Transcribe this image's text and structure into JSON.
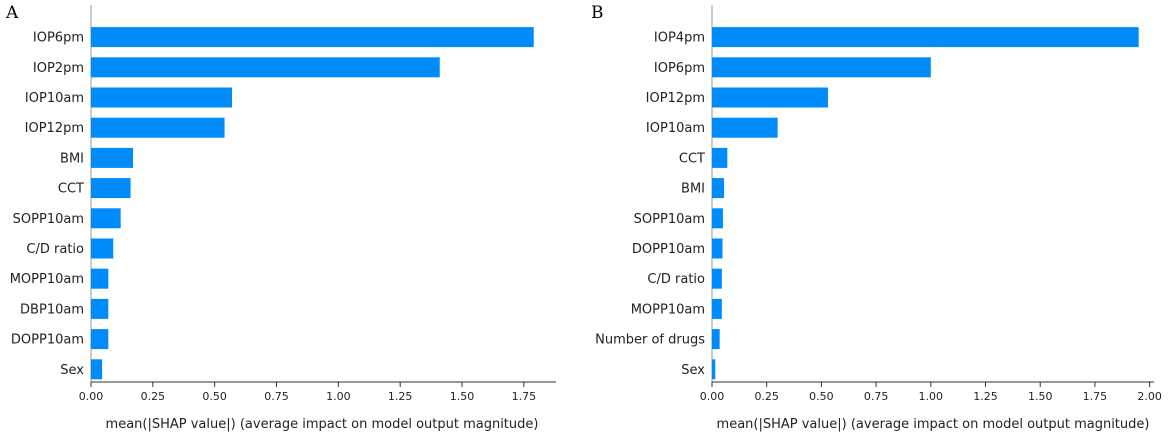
{
  "chart_data": [
    {
      "type": "bar",
      "orientation": "horizontal",
      "panel_label": "A",
      "title": "",
      "categories": [
        "IOP6pm",
        "IOP2pm",
        "IOP10am",
        "IOP12pm",
        "BMI",
        "CCT",
        "SOPP10am",
        "C/D ratio",
        "MOPP10am",
        "DBP10am",
        "DOPP10am",
        "Sex"
      ],
      "values": [
        1.79,
        1.41,
        0.57,
        0.54,
        0.17,
        0.16,
        0.12,
        0.09,
        0.07,
        0.07,
        0.07,
        0.045
      ],
      "xlabel": "mean(|SHAP value|) (average impact on model output magnitude)",
      "ylabel": "",
      "xlim": [
        0,
        1.88
      ],
      "xticks": [
        0.0,
        0.25,
        0.5,
        0.75,
        1.0,
        1.25,
        1.5,
        1.75
      ],
      "xtick_labels": [
        "0.00",
        "0.25",
        "0.50",
        "0.75",
        "1.00",
        "1.25",
        "1.50",
        "1.75"
      ],
      "bar_color": "#008bfb",
      "grid": false
    },
    {
      "type": "bar",
      "orientation": "horizontal",
      "panel_label": "B",
      "title": "",
      "categories": [
        "IOP4pm",
        "IOP6pm",
        "IOP12pm",
        "IOP10am",
        "CCT",
        "BMI",
        "SOPP10am",
        "DOPP10am",
        "C/D ratio",
        "MOPP10am",
        "Number of drugs",
        "Sex"
      ],
      "values": [
        1.95,
        1.0,
        0.53,
        0.3,
        0.07,
        0.055,
        0.05,
        0.048,
        0.045,
        0.045,
        0.035,
        0.015
      ],
      "xlabel": "mean(|SHAP value|) (average impact on model output magnitude)",
      "ylabel": "",
      "xlim": [
        0,
        2.02
      ],
      "xticks": [
        0.0,
        0.25,
        0.5,
        0.75,
        1.0,
        1.25,
        1.5,
        1.75,
        2.0
      ],
      "xtick_labels": [
        "0.00",
        "0.25",
        "0.50",
        "0.75",
        "1.00",
        "1.25",
        "1.50",
        "1.75",
        "2.00"
      ],
      "bar_color": "#008bfb",
      "grid": false
    }
  ]
}
